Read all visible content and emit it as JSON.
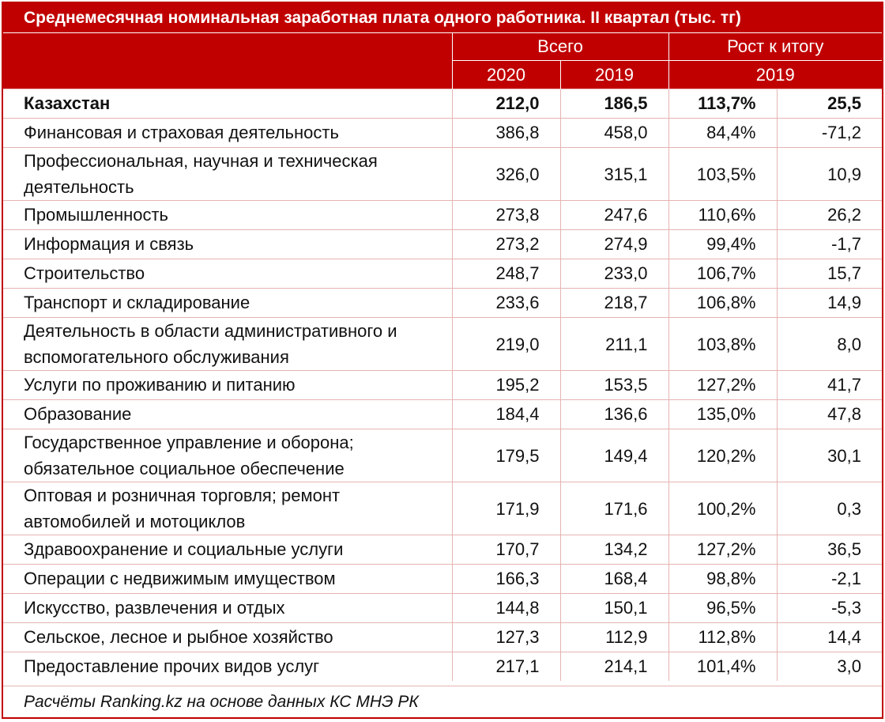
{
  "title": "Среднемесячная номинальная заработная плата одного работника. II квартал (тыс. тг)",
  "header": {
    "group_total": "Всего",
    "group_growth": "Рост к итогу",
    "year_2020": "2020",
    "year_2019": "2019",
    "growth_year": "2019"
  },
  "rows": [
    {
      "name": "Казахстан",
      "v2020": "212,0",
      "v2019": "186,5",
      "pct": "113,7%",
      "diff": "25,5"
    },
    {
      "name": "Финансовая и страховая деятельность",
      "v2020": "386,8",
      "v2019": "458,0",
      "pct": "84,4%",
      "diff": "-71,2"
    },
    {
      "name": "Профессиональная, научная и техническая деятельность",
      "v2020": "326,0",
      "v2019": "315,1",
      "pct": "103,5%",
      "diff": "10,9"
    },
    {
      "name": "Промышленность",
      "v2020": "273,8",
      "v2019": "247,6",
      "pct": "110,6%",
      "diff": "26,2"
    },
    {
      "name": "Информация и связь",
      "v2020": "273,2",
      "v2019": "274,9",
      "pct": "99,4%",
      "diff": "-1,7"
    },
    {
      "name": "Строительство",
      "v2020": "248,7",
      "v2019": "233,0",
      "pct": "106,7%",
      "diff": "15,7"
    },
    {
      "name": "Транспорт и складирование",
      "v2020": "233,6",
      "v2019": "218,7",
      "pct": "106,8%",
      "diff": "14,9"
    },
    {
      "name": "Деятельность в области административного и вспомогательного обслуживания",
      "v2020": "219,0",
      "v2019": "211,1",
      "pct": "103,8%",
      "diff": "8,0"
    },
    {
      "name": "Услуги по проживанию и питанию",
      "v2020": "195,2",
      "v2019": "153,5",
      "pct": "127,2%",
      "diff": "41,7"
    },
    {
      "name": "Образование",
      "v2020": "184,4",
      "v2019": "136,6",
      "pct": "135,0%",
      "diff": "47,8"
    },
    {
      "name": "Государственное управление и оборона; обязательное социальное обеспечение",
      "v2020": "179,5",
      "v2019": "149,4",
      "pct": "120,2%",
      "diff": "30,1"
    },
    {
      "name": "Оптовая и розничная торговля; ремонт автомобилей и мотоциклов",
      "v2020": "171,9",
      "v2019": "171,6",
      "pct": "100,2%",
      "diff": "0,3"
    },
    {
      "name": "Здравоохранение и социальные услуги",
      "v2020": "170,7",
      "v2019": "134,2",
      "pct": "127,2%",
      "diff": "36,5"
    },
    {
      "name": "Операции с недвижимым имуществом",
      "v2020": "166,3",
      "v2019": "168,4",
      "pct": "98,8%",
      "diff": "-2,1"
    },
    {
      "name": "Искусство, развлечения и отдых",
      "v2020": "144,8",
      "v2019": "150,1",
      "pct": "96,5%",
      "diff": "-5,3"
    },
    {
      "name": "Сельское, лесное и рыбное хозяйство",
      "v2020": "127,3",
      "v2019": "112,9",
      "pct": "112,8%",
      "diff": "14,4"
    },
    {
      "name": "Предоставление прочих видов услуг",
      "v2020": "217,1",
      "v2019": "214,1",
      "pct": "101,4%",
      "diff": "3,0"
    }
  ],
  "footer": "Расчёты Ranking.kz на основе данных КС МНЭ РК",
  "colors": {
    "accent": "#c00000",
    "grid": "#e6b3b3"
  },
  "chart_data": {
    "type": "table",
    "title": "Среднемесячная номинальная заработная плата одного работника. II квартал (тыс. тг)",
    "columns": [
      "",
      "Всего 2020",
      "Всего 2019",
      "Рост к итогу 2019",
      "Рост к итогу 2019"
    ],
    "rows": [
      [
        "Казахстан",
        212.0,
        186.5,
        113.7,
        25.5
      ],
      [
        "Финансовая и страховая деятельность",
        386.8,
        458.0,
        84.4,
        -71.2
      ],
      [
        "Профессиональная, научная и техническая деятельность",
        326.0,
        315.1,
        103.5,
        10.9
      ],
      [
        "Промышленность",
        273.8,
        247.6,
        110.6,
        26.2
      ],
      [
        "Информация и связь",
        273.2,
        274.9,
        99.4,
        -1.7
      ],
      [
        "Строительство",
        248.7,
        233.0,
        106.7,
        15.7
      ],
      [
        "Транспорт и складирование",
        233.6,
        218.7,
        106.8,
        14.9
      ],
      [
        "Деятельность в области административного и вспомогательного обслуживания",
        219.0,
        211.1,
        103.8,
        8.0
      ],
      [
        "Услуги по проживанию и питанию",
        195.2,
        153.5,
        127.2,
        41.7
      ],
      [
        "Образование",
        184.4,
        136.6,
        135.0,
        47.8
      ],
      [
        "Государственное управление и оборона; обязательное социальное обеспечение",
        179.5,
        149.4,
        120.2,
        30.1
      ],
      [
        "Оптовая и розничная торговля; ремонт автомобилей и мотоциклов",
        171.9,
        171.6,
        100.2,
        0.3
      ],
      [
        "Здравоохранение и социальные услуги",
        170.7,
        134.2,
        127.2,
        36.5
      ],
      [
        "Операции с недвижимым имуществом",
        166.3,
        168.4,
        98.8,
        -2.1
      ],
      [
        "Искусство, развлечения и отдых",
        144.8,
        150.1,
        96.5,
        -5.3
      ],
      [
        "Сельское, лесное и рыбное хозяйство",
        127.3,
        112.9,
        112.8,
        14.4
      ],
      [
        "Предоставление прочих видов услуг",
        217.1,
        214.1,
        101.4,
        3.0
      ]
    ]
  }
}
